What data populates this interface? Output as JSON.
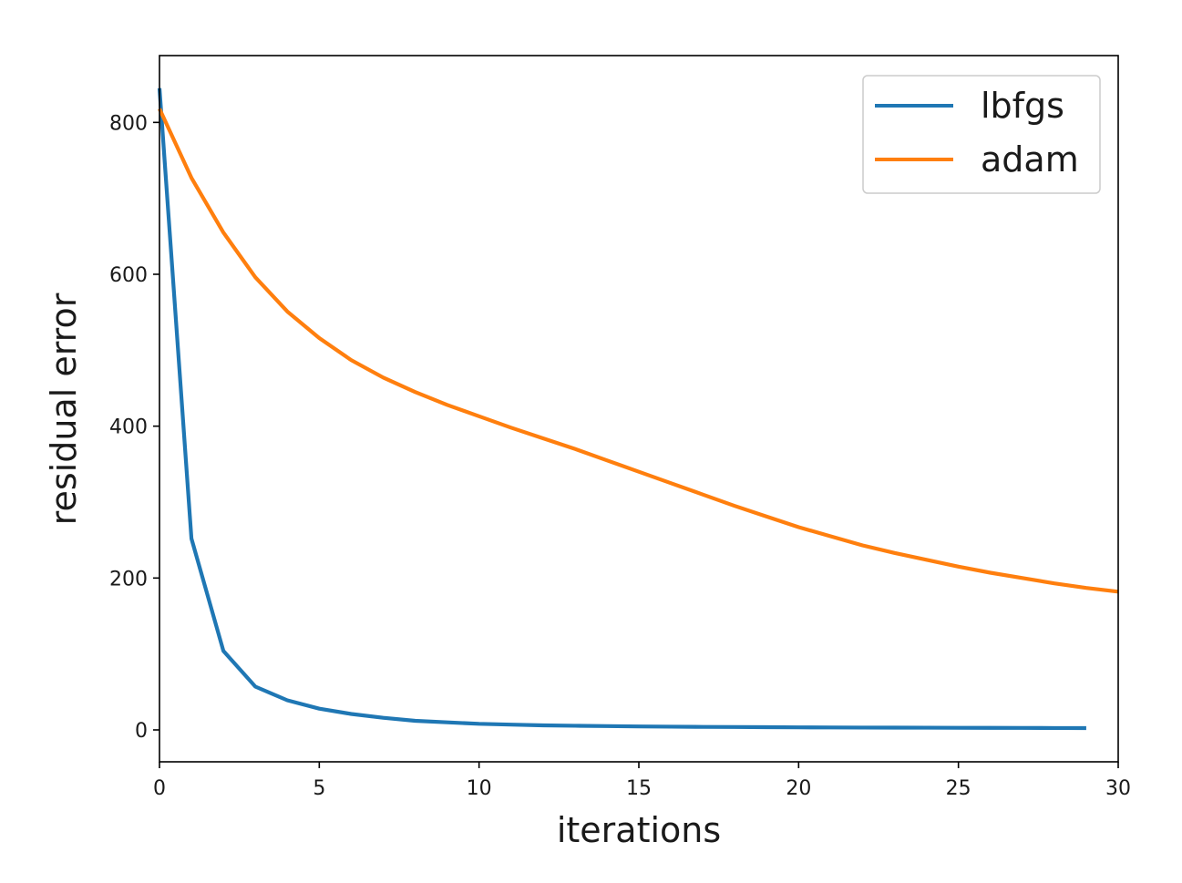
{
  "chart_data": {
    "type": "line",
    "xlabel": "iterations",
    "ylabel": "residual error",
    "xlim": [
      0,
      30
    ],
    "ylim": [
      -42,
      888
    ],
    "xticks": [
      0,
      5,
      10,
      15,
      20,
      25,
      30
    ],
    "yticks": [
      0,
      200,
      400,
      600,
      800
    ],
    "grid": false,
    "legend_position": "top-right",
    "series": [
      {
        "name": "lbfgs",
        "color": "#1f77b4",
        "x": [
          0,
          1,
          2,
          3,
          4,
          5,
          6,
          7,
          8,
          9,
          10,
          11,
          12,
          13,
          14,
          15,
          16,
          17,
          18,
          19,
          20,
          21,
          22,
          23,
          24,
          25,
          26,
          27,
          28,
          29
        ],
        "values": [
          845,
          252,
          104,
          57,
          39,
          28,
          21,
          16,
          12,
          10,
          8,
          7,
          6,
          5.5,
          5,
          4.6,
          4.3,
          4,
          3.8,
          3.6,
          3.4,
          3.2,
          3.1,
          3,
          2.9,
          2.8,
          2.7,
          2.6,
          2.5,
          2.4
        ]
      },
      {
        "name": "adam",
        "color": "#ff7f0e",
        "x": [
          0,
          1,
          2,
          3,
          4,
          5,
          6,
          7,
          8,
          9,
          10,
          11,
          12,
          13,
          14,
          15,
          16,
          17,
          18,
          19,
          20,
          21,
          22,
          23,
          24,
          25,
          26,
          27,
          28,
          29,
          30
        ],
        "values": [
          818,
          727,
          655,
          596,
          551,
          516,
          487,
          464,
          445,
          428,
          413,
          398,
          384,
          370,
          355,
          340,
          325,
          310,
          295,
          281,
          267,
          255,
          243,
          233,
          224,
          215,
          207,
          200,
          193,
          187,
          182
        ]
      }
    ]
  }
}
